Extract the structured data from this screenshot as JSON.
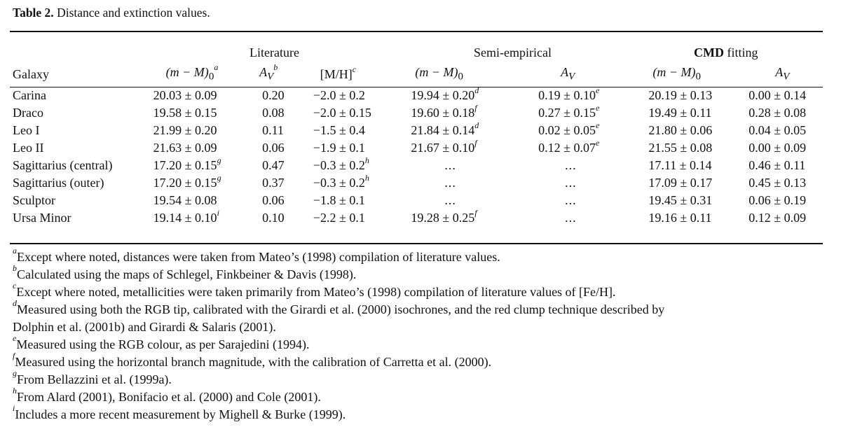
{
  "caption": {
    "label": "Table 2.",
    "text": "Distance and extinction values."
  },
  "groups": {
    "literature": "Literature",
    "semi_empirical": "Semi-empirical",
    "cmd_fitting_bold": "CMD",
    "cmd_fitting_rest": " fitting"
  },
  "columns": {
    "galaxy": "Galaxy",
    "lit_mm": "(m − M)",
    "lit_mm_sub": "0",
    "lit_mm_sup": "a",
    "lit_av": "A",
    "lit_av_sub": "V",
    "lit_av_sup": "b",
    "mh": "[M/H]",
    "mh_sup": "c",
    "semi_mm": "(m − M)",
    "semi_mm_sub": "0",
    "semi_av": "A",
    "semi_av_sub": "V",
    "cmd_mm": "(m − M)",
    "cmd_mm_sub": "0",
    "cmd_av": "A",
    "cmd_av_sub": "V"
  },
  "rows": [
    {
      "galaxy": "Carina",
      "lit_mm": "20.03 ± 0.09",
      "lit_mm_sup": "",
      "lit_av": "0.20",
      "mh": "−2.0 ± 0.2",
      "mh_sup": "",
      "semi_mm": "19.94 ± 0.20",
      "semi_mm_sup": "d",
      "semi_av": "0.19 ± 0.10",
      "semi_av_sup": "e",
      "cmd_mm": "20.19 ± 0.13",
      "cmd_av": "0.00 ± 0.14"
    },
    {
      "galaxy": "Draco",
      "lit_mm": "19.58 ± 0.15",
      "lit_mm_sup": "",
      "lit_av": "0.08",
      "mh": "−2.0 ± 0.15",
      "mh_sup": "",
      "semi_mm": "19.60 ± 0.18",
      "semi_mm_sup": "f",
      "semi_av": "0.27 ± 0.15",
      "semi_av_sup": "e",
      "cmd_mm": "19.49 ± 0.11",
      "cmd_av": "0.28 ± 0.08"
    },
    {
      "galaxy": "Leo I",
      "lit_mm": "21.99 ± 0.20",
      "lit_mm_sup": "",
      "lit_av": "0.11",
      "mh": "−1.5 ± 0.4",
      "mh_sup": "",
      "semi_mm": "21.84 ± 0.14",
      "semi_mm_sup": "d",
      "semi_av": "0.02 ± 0.05",
      "semi_av_sup": "e",
      "cmd_mm": "21.80 ± 0.06",
      "cmd_av": "0.04 ± 0.05"
    },
    {
      "galaxy": "Leo II",
      "lit_mm": "21.63 ± 0.09",
      "lit_mm_sup": "",
      "lit_av": "0.06",
      "mh": "−1.9 ± 0.1",
      "mh_sup": "",
      "semi_mm": "21.67 ± 0.10",
      "semi_mm_sup": "f",
      "semi_av": "0.12 ± 0.07",
      "semi_av_sup": "e",
      "cmd_mm": "21.55 ± 0.08",
      "cmd_av": "0.00 ± 0.09"
    },
    {
      "galaxy": "Sagittarius (central)",
      "lit_mm": "17.20 ± 0.15",
      "lit_mm_sup": "g",
      "lit_av": "0.47",
      "mh": "−0.3 ± 0.2",
      "mh_sup": "h",
      "semi_mm": "...",
      "semi_mm_sup": "",
      "semi_av": "...",
      "semi_av_sup": "",
      "cmd_mm": "17.11 ± 0.14",
      "cmd_av": "0.46 ± 0.11"
    },
    {
      "galaxy": "Sagittarius (outer)",
      "lit_mm": "17.20 ± 0.15",
      "lit_mm_sup": "g",
      "lit_av": "0.37",
      "mh": "−0.3 ± 0.2",
      "mh_sup": "h",
      "semi_mm": "...",
      "semi_mm_sup": "",
      "semi_av": "...",
      "semi_av_sup": "",
      "cmd_mm": "17.09 ± 0.17",
      "cmd_av": "0.45 ± 0.13"
    },
    {
      "galaxy": "Sculptor",
      "lit_mm": "19.54 ± 0.08",
      "lit_mm_sup": "",
      "lit_av": "0.06",
      "mh": "−1.8 ± 0.1",
      "mh_sup": "",
      "semi_mm": "...",
      "semi_mm_sup": "",
      "semi_av": "...",
      "semi_av_sup": "",
      "cmd_mm": "19.45 ± 0.31",
      "cmd_av": "0.06 ± 0.19"
    },
    {
      "galaxy": "Ursa Minor",
      "lit_mm": "19.14 ± 0.10",
      "lit_mm_sup": "i",
      "lit_av": "0.10",
      "mh": "−2.2 ± 0.1",
      "mh_sup": "",
      "semi_mm": "19.28 ± 0.25",
      "semi_mm_sup": "f",
      "semi_av": "...",
      "semi_av_sup": "",
      "cmd_mm": "19.16 ± 0.11",
      "cmd_av": "0.12 ± 0.09"
    }
  ],
  "notes": [
    {
      "mark": "a",
      "text": "Except where noted, distances were taken from Mateo’s (1998) compilation of literature values."
    },
    {
      "mark": "b",
      "text": "Calculated using the maps of Schlegel, Finkbeiner & Davis (1998)."
    },
    {
      "mark": "c",
      "text": "Except where noted, metallicities were taken primarily from Mateo’s (1998) compilation of literature values of [Fe/H]."
    },
    {
      "mark": "d",
      "text": "Measured using both the RGB tip, calibrated with the Girardi et al. (2000) isochrones, and the red clump technique described by"
    },
    {
      "mark": "",
      "text": "Dolphin et al. (2001b) and Girardi & Salaris (2001)."
    },
    {
      "mark": "e",
      "text": "Measured using the RGB colour, as per Sarajedini (1994)."
    },
    {
      "mark": "f",
      "text": "Measured using the horizontal branch magnitude, with the calibration of Carretta et al. (2000)."
    },
    {
      "mark": "g",
      "text": "From Bellazzini et al. (1999a)."
    },
    {
      "mark": "h",
      "text": "From Alard (2001), Bonifacio et al. (2000) and Cole (2001)."
    },
    {
      "mark": "i",
      "text": "Includes a more recent measurement by Mighell & Burke (1999)."
    }
  ]
}
